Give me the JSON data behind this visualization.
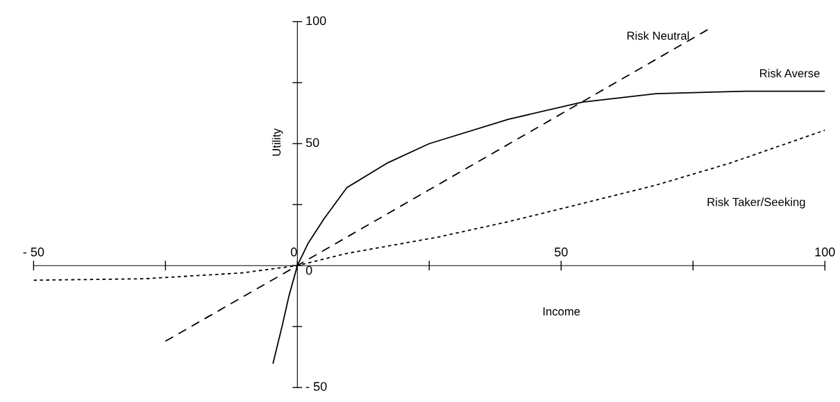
{
  "chart_data": {
    "type": "line",
    "xlabel": "Income",
    "ylabel": "Utility",
    "xlim": [
      -50,
      100
    ],
    "ylim": [
      -50,
      100
    ],
    "xticks": [
      {
        "value": -50,
        "label": "- 50"
      },
      {
        "value": -25,
        "label": null
      },
      0,
      {
        "value": 25,
        "label": null
      },
      50,
      {
        "value": 75,
        "label": null
      },
      100
    ],
    "yticks": [
      {
        "value": -50,
        "label": "- 50"
      },
      {
        "value": -25,
        "label": null
      },
      0,
      {
        "value": 25,
        "label": null
      },
      50,
      {
        "value": 75,
        "label": null
      },
      100
    ],
    "grid": false,
    "legend": false,
    "marker": "none",
    "series": [
      {
        "name": "Risk Neutral",
        "color": "#000000",
        "line_style": "dashed",
        "x": [
          -25,
          0,
          78
        ],
        "values": [
          -31,
          0,
          97
        ]
      },
      {
        "name": "Risk Averse",
        "color": "#000000",
        "line_style": "solid",
        "x": [
          -4.6,
          -2.8,
          -1.6,
          0,
          2,
          5,
          9.4,
          17,
          25,
          40,
          54,
          68,
          85,
          100
        ],
        "values": [
          -40,
          -24,
          -12.5,
          0,
          9,
          19,
          32,
          42,
          50,
          60,
          67,
          70.5,
          71.5,
          71.5
        ]
      },
      {
        "name": "Risk Taker/Seeking",
        "color": "#000000",
        "line_style": "dotted",
        "x": [
          -50,
          -29,
          -10.5,
          0,
          9.4,
          26.7,
          40,
          52.4,
          68,
          82,
          100
        ],
        "values": [
          -6,
          -5.4,
          -3,
          0,
          5,
          11.7,
          18,
          24.6,
          33,
          42,
          55.5
        ]
      }
    ]
  }
}
